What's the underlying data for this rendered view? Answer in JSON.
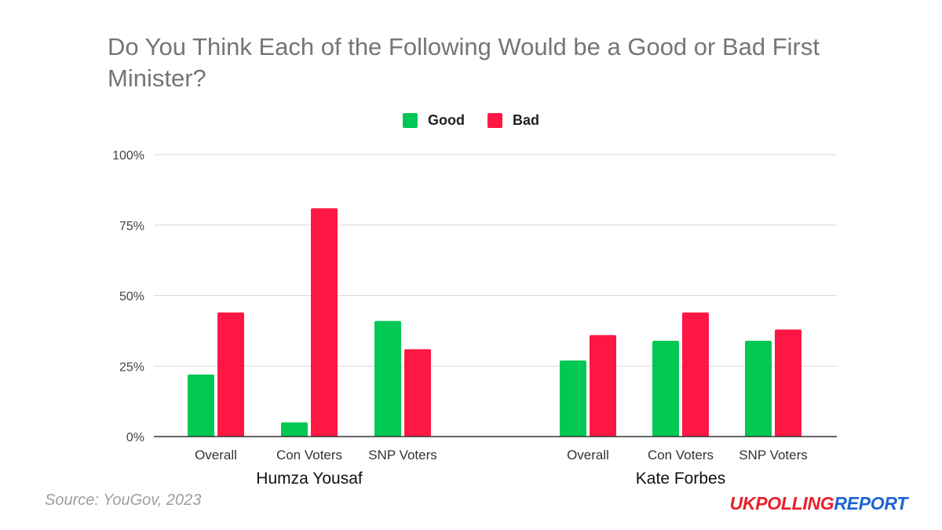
{
  "chart_data": {
    "type": "bar",
    "title": "Do You Think Each of the Following Would be a Good or Bad First Minister?",
    "groups": [
      {
        "name": "Humza Yousaf",
        "categories": [
          "Overall",
          "Con Voters",
          "SNP Voters"
        ]
      },
      {
        "name": "Kate Forbes",
        "categories": [
          "Overall",
          "Con Voters",
          "SNP Voters"
        ]
      }
    ],
    "series": [
      {
        "name": "Good",
        "color": "#00c853",
        "values": [
          22,
          5,
          41,
          27,
          34,
          34
        ]
      },
      {
        "name": "Bad",
        "color": "#ff1744",
        "values": [
          44,
          81,
          31,
          36,
          44,
          38
        ]
      }
    ],
    "yticks": [
      "0%",
      "25%",
      "50%",
      "75%",
      "100%"
    ],
    "ylim": [
      0,
      100
    ],
    "grid": true,
    "legend_position": "top"
  },
  "source": "Source: YouGov, 2023",
  "brand": {
    "part1": "UKPOLLING",
    "part2": "REPORT"
  }
}
